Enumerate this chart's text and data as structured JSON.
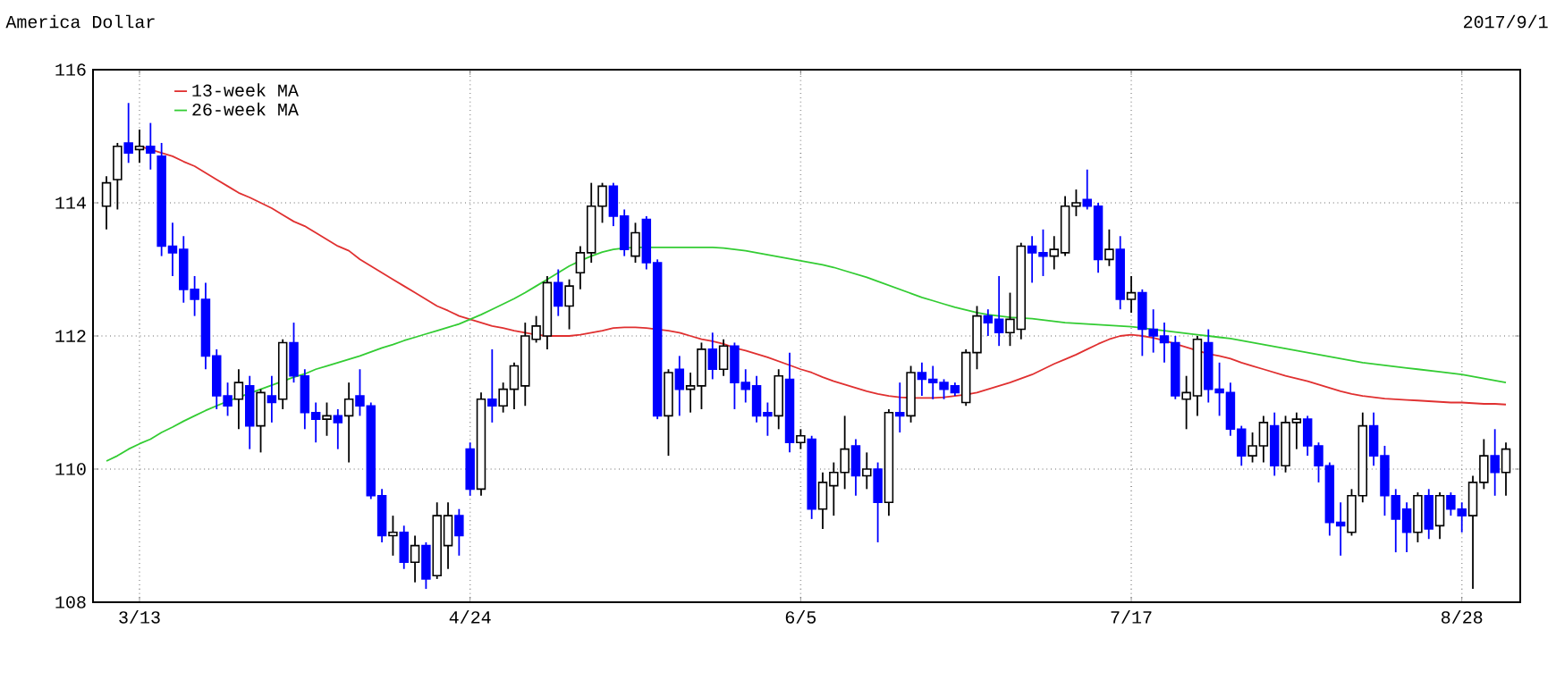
{
  "chart_data": {
    "type": "candlestick",
    "title": "America Dollar",
    "subtitle": "2017/9/1",
    "categories": [
      null,
      null,
      null,
      "3/13",
      null,
      null,
      null,
      null,
      null,
      null,
      null,
      null,
      null,
      null,
      null,
      null,
      null,
      null,
      null,
      null,
      null,
      null,
      null,
      null,
      null,
      null,
      null,
      null,
      null,
      null,
      null,
      null,
      null,
      "4/24",
      null,
      null,
      null,
      null,
      null,
      null,
      null,
      null,
      null,
      null,
      null,
      null,
      null,
      null,
      null,
      null,
      null,
      null,
      null,
      null,
      null,
      null,
      null,
      null,
      null,
      null,
      null,
      null,
      null,
      "6/5",
      null,
      null,
      null,
      null,
      null,
      null,
      null,
      null,
      null,
      null,
      null,
      null,
      null,
      null,
      null,
      null,
      null,
      null,
      null,
      null,
      null,
      null,
      null,
      null,
      null,
      null,
      null,
      null,
      null,
      "7/17",
      null,
      null,
      null,
      null,
      null,
      null,
      null,
      null,
      null,
      null,
      null,
      null,
      null,
      null,
      null,
      null,
      null,
      null,
      null,
      null,
      null,
      null,
      null,
      null,
      null,
      null,
      null,
      null,
      null,
      "8/28",
      null,
      null,
      null,
      null
    ],
    "ohlc": [
      [
        113.95,
        114.4,
        113.6,
        114.3
      ],
      [
        114.35,
        114.9,
        113.9,
        114.85
      ],
      [
        114.9,
        115.5,
        114.6,
        114.75
      ],
      [
        114.8,
        115.1,
        114.6,
        114.85
      ],
      [
        114.85,
        115.2,
        114.5,
        114.75
      ],
      [
        114.7,
        114.9,
        113.2,
        113.35
      ],
      [
        113.35,
        113.7,
        112.9,
        113.25
      ],
      [
        113.3,
        113.5,
        112.5,
        112.7
      ],
      [
        112.7,
        112.9,
        112.3,
        112.55
      ],
      [
        112.55,
        112.8,
        111.5,
        111.7
      ],
      [
        111.7,
        111.8,
        110.9,
        111.1
      ],
      [
        111.1,
        111.3,
        110.8,
        110.95
      ],
      [
        111.05,
        111.5,
        110.6,
        111.3
      ],
      [
        111.25,
        111.4,
        110.3,
        110.65
      ],
      [
        110.65,
        111.2,
        110.25,
        111.15
      ],
      [
        111.1,
        111.4,
        110.7,
        111.0
      ],
      [
        111.05,
        111.95,
        110.9,
        111.9
      ],
      [
        111.9,
        112.2,
        111.3,
        111.4
      ],
      [
        111.4,
        111.5,
        110.6,
        110.85
      ],
      [
        110.85,
        111.0,
        110.4,
        110.75
      ],
      [
        110.75,
        111.0,
        110.5,
        110.8
      ],
      [
        110.8,
        110.9,
        110.3,
        110.7
      ],
      [
        110.8,
        111.3,
        110.1,
        111.05
      ],
      [
        111.1,
        111.5,
        110.8,
        110.95
      ],
      [
        110.95,
        111.0,
        109.55,
        109.6
      ],
      [
        109.6,
        109.7,
        108.9,
        109.0
      ],
      [
        109.0,
        109.3,
        108.7,
        109.05
      ],
      [
        109.05,
        109.15,
        108.5,
        108.6
      ],
      [
        108.6,
        109.0,
        108.3,
        108.85
      ],
      [
        108.85,
        108.9,
        108.2,
        108.35
      ],
      [
        108.4,
        109.5,
        108.35,
        109.3
      ],
      [
        108.85,
        109.5,
        108.5,
        109.3
      ],
      [
        109.3,
        109.4,
        108.7,
        109.0
      ],
      [
        110.3,
        110.4,
        109.6,
        109.7
      ],
      [
        109.7,
        111.15,
        109.6,
        111.05
      ],
      [
        111.05,
        111.8,
        110.7,
        110.95
      ],
      [
        110.95,
        111.3,
        110.85,
        111.2
      ],
      [
        111.2,
        111.6,
        110.9,
        111.55
      ],
      [
        111.25,
        112.2,
        110.95,
        112.0
      ],
      [
        111.95,
        112.3,
        111.9,
        112.15
      ],
      [
        112.0,
        112.9,
        111.8,
        112.8
      ],
      [
        112.8,
        113.0,
        112.3,
        112.45
      ],
      [
        112.45,
        112.85,
        112.1,
        112.75
      ],
      [
        112.95,
        113.35,
        112.7,
        113.25
      ],
      [
        113.25,
        114.3,
        113.1,
        113.95
      ],
      [
        113.95,
        114.3,
        113.7,
        114.25
      ],
      [
        114.25,
        114.3,
        113.65,
        113.8
      ],
      [
        113.8,
        113.9,
        113.2,
        113.3
      ],
      [
        113.2,
        113.7,
        113.1,
        113.55
      ],
      [
        113.75,
        113.8,
        113.0,
        113.1
      ],
      [
        113.1,
        113.15,
        110.75,
        110.8
      ],
      [
        110.8,
        111.5,
        110.2,
        111.45
      ],
      [
        111.5,
        111.7,
        110.8,
        111.2
      ],
      [
        111.2,
        111.45,
        110.85,
        111.25
      ],
      [
        111.25,
        111.9,
        110.9,
        111.8
      ],
      [
        111.8,
        112.05,
        111.35,
        111.5
      ],
      [
        111.5,
        111.95,
        111.4,
        111.85
      ],
      [
        111.85,
        111.9,
        110.9,
        111.3
      ],
      [
        111.3,
        111.5,
        111.0,
        111.2
      ],
      [
        111.25,
        111.4,
        110.7,
        110.8
      ],
      [
        110.85,
        111.0,
        110.5,
        110.8
      ],
      [
        110.8,
        111.5,
        110.6,
        111.4
      ],
      [
        111.35,
        111.75,
        110.25,
        110.4
      ],
      [
        110.4,
        110.6,
        110.3,
        110.5
      ],
      [
        110.45,
        110.5,
        109.25,
        109.4
      ],
      [
        109.4,
        109.95,
        109.1,
        109.8
      ],
      [
        109.75,
        110.1,
        109.3,
        109.95
      ],
      [
        109.95,
        110.8,
        109.7,
        110.3
      ],
      [
        110.35,
        110.45,
        109.6,
        109.9
      ],
      [
        109.9,
        110.25,
        109.7,
        110.0
      ],
      [
        110.0,
        110.1,
        108.9,
        109.5
      ],
      [
        109.5,
        110.9,
        109.3,
        110.85
      ],
      [
        110.85,
        111.3,
        110.55,
        110.8
      ],
      [
        110.8,
        111.55,
        110.7,
        111.45
      ],
      [
        111.45,
        111.6,
        111.1,
        111.35
      ],
      [
        111.35,
        111.55,
        111.05,
        111.3
      ],
      [
        111.3,
        111.35,
        111.05,
        111.2
      ],
      [
        111.25,
        111.3,
        111.1,
        111.15
      ],
      [
        111.0,
        111.8,
        110.95,
        111.75
      ],
      [
        111.75,
        112.45,
        111.5,
        112.3
      ],
      [
        112.3,
        112.4,
        112.0,
        112.2
      ],
      [
        112.25,
        112.9,
        111.85,
        112.05
      ],
      [
        112.05,
        112.65,
        111.85,
        112.25
      ],
      [
        112.1,
        113.4,
        111.95,
        113.35
      ],
      [
        113.35,
        113.5,
        112.8,
        113.25
      ],
      [
        113.25,
        113.6,
        112.9,
        113.2
      ],
      [
        113.2,
        113.5,
        113.0,
        113.3
      ],
      [
        113.25,
        114.1,
        113.2,
        113.95
      ],
      [
        113.95,
        114.2,
        113.8,
        114.0
      ],
      [
        114.05,
        114.5,
        113.9,
        113.95
      ],
      [
        113.95,
        114.0,
        112.95,
        113.15
      ],
      [
        113.15,
        113.6,
        113.05,
        113.3
      ],
      [
        113.3,
        113.5,
        112.4,
        112.55
      ],
      [
        112.55,
        112.9,
        112.35,
        112.65
      ],
      [
        112.65,
        112.7,
        111.7,
        112.1
      ],
      [
        112.1,
        112.4,
        111.75,
        112.0
      ],
      [
        112.0,
        112.2,
        111.6,
        111.9
      ],
      [
        111.9,
        112.0,
        111.05,
        111.1
      ],
      [
        111.05,
        111.4,
        110.6,
        111.15
      ],
      [
        111.1,
        112.0,
        110.8,
        111.95
      ],
      [
        111.9,
        112.1,
        111.0,
        111.2
      ],
      [
        111.2,
        111.6,
        110.8,
        111.15
      ],
      [
        111.15,
        111.3,
        110.5,
        110.6
      ],
      [
        110.6,
        110.65,
        110.05,
        110.2
      ],
      [
        110.2,
        110.55,
        110.1,
        110.35
      ],
      [
        110.35,
        110.8,
        110.1,
        110.7
      ],
      [
        110.65,
        110.85,
        109.9,
        110.05
      ],
      [
        110.05,
        110.8,
        109.95,
        110.7
      ],
      [
        110.7,
        110.85,
        110.3,
        110.75
      ],
      [
        110.75,
        110.8,
        110.2,
        110.35
      ],
      [
        110.35,
        110.4,
        109.8,
        110.05
      ],
      [
        110.05,
        110.1,
        109.0,
        109.2
      ],
      [
        109.2,
        109.5,
        108.7,
        109.15
      ],
      [
        109.05,
        109.7,
        109.0,
        109.6
      ],
      [
        109.6,
        110.85,
        109.5,
        110.65
      ],
      [
        110.65,
        110.85,
        110.05,
        110.2
      ],
      [
        110.2,
        110.35,
        109.3,
        109.6
      ],
      [
        109.6,
        109.7,
        108.75,
        109.25
      ],
      [
        109.4,
        109.5,
        108.75,
        109.05
      ],
      [
        109.05,
        109.65,
        108.9,
        109.6
      ],
      [
        109.6,
        109.7,
        108.95,
        109.1
      ],
      [
        109.15,
        109.65,
        108.95,
        109.6
      ],
      [
        109.6,
        109.65,
        109.3,
        109.4
      ],
      [
        109.4,
        109.5,
        109.05,
        109.3
      ],
      [
        109.3,
        109.9,
        108.2,
        109.8
      ],
      [
        109.8,
        110.45,
        109.7,
        110.2
      ],
      [
        110.2,
        110.6,
        109.6,
        109.95
      ],
      [
        109.95,
        110.4,
        109.6,
        110.3
      ]
    ],
    "colors": [
      "#ffffff",
      "#ffffff",
      "#0000ff",
      "#ffffff",
      "#0000ff",
      "#0000ff",
      "#0000ff",
      "#0000ff",
      "#0000ff",
      "#0000ff",
      "#0000ff",
      "#0000ff",
      "#ffffff",
      "#0000ff",
      "#ffffff",
      "#0000ff",
      "#ffffff",
      "#0000ff",
      "#0000ff",
      "#0000ff",
      "#ffffff",
      "#0000ff",
      "#ffffff",
      "#0000ff",
      "#0000ff",
      "#0000ff",
      "#ffffff",
      "#0000ff",
      "#ffffff",
      "#0000ff",
      "#ffffff",
      "#ffffff",
      "#0000ff",
      "#0000ff",
      "#ffffff",
      "#0000ff",
      "#ffffff",
      "#ffffff",
      "#ffffff",
      "#ffffff",
      "#ffffff",
      "#0000ff",
      "#ffffff",
      "#ffffff",
      "#ffffff",
      "#ffffff",
      "#0000ff",
      "#0000ff",
      "#ffffff",
      "#0000ff",
      "#0000ff",
      "#ffffff",
      "#0000ff",
      "#ffffff",
      "#ffffff",
      "#0000ff",
      "#ffffff",
      "#0000ff",
      "#0000ff",
      "#0000ff",
      "#0000ff",
      "#ffffff",
      "#0000ff",
      "#ffffff",
      "#0000ff",
      "#ffffff",
      "#ffffff",
      "#ffffff",
      "#0000ff",
      "#ffffff",
      "#0000ff",
      "#ffffff",
      "#0000ff",
      "#ffffff",
      "#0000ff",
      "#0000ff",
      "#0000ff",
      "#0000ff",
      "#ffffff",
      "#ffffff",
      "#0000ff",
      "#0000ff",
      "#ffffff",
      "#ffffff",
      "#0000ff",
      "#0000ff",
      "#ffffff",
      "#ffffff",
      "#ffffff",
      "#0000ff",
      "#0000ff",
      "#ffffff",
      "#0000ff",
      "#ffffff",
      "#0000ff",
      "#0000ff",
      "#0000ff",
      "#0000ff",
      "#ffffff",
      "#ffffff",
      "#0000ff",
      "#0000ff",
      "#0000ff",
      "#0000ff",
      "#ffffff",
      "#ffffff",
      "#0000ff",
      "#ffffff",
      "#ffffff",
      "#0000ff",
      "#0000ff",
      "#0000ff",
      "#0000ff",
      "#ffffff",
      "#ffffff",
      "#0000ff",
      "#0000ff",
      "#0000ff",
      "#0000ff",
      "#ffffff",
      "#0000ff",
      "#ffffff",
      "#0000ff",
      "#0000ff",
      "#ffffff",
      "#ffffff",
      "#0000ff",
      "#ffffff"
    ],
    "series": [
      {
        "type": "line",
        "name": "13-week MA",
        "color": "#e03030",
        "values": [
          null,
          null,
          null,
          114.85,
          114.8,
          114.75,
          114.7,
          114.62,
          114.55,
          114.45,
          114.35,
          114.25,
          114.15,
          114.08,
          114.0,
          113.92,
          113.82,
          113.72,
          113.65,
          113.55,
          113.45,
          113.35,
          113.28,
          113.15,
          113.05,
          112.95,
          112.85,
          112.75,
          112.65,
          112.55,
          112.45,
          112.38,
          112.3,
          112.25,
          112.2,
          112.15,
          112.12,
          112.08,
          112.05,
          112.02,
          112.0,
          112.0,
          112.0,
          112.02,
          112.05,
          112.08,
          112.12,
          112.13,
          112.13,
          112.12,
          112.1,
          112.08,
          112.05,
          112.0,
          111.95,
          111.92,
          111.88,
          111.82,
          111.78,
          111.73,
          111.68,
          111.62,
          111.56,
          111.5,
          111.45,
          111.38,
          111.32,
          111.27,
          111.22,
          111.17,
          111.13,
          111.1,
          111.08,
          111.07,
          111.07,
          111.07,
          111.08,
          111.1,
          111.12,
          111.15,
          111.2,
          111.25,
          111.3,
          111.36,
          111.42,
          111.5,
          111.58,
          111.65,
          111.72,
          111.8,
          111.88,
          111.95,
          112.0,
          112.02,
          112.0,
          111.97,
          111.93,
          111.88,
          111.83,
          111.78,
          111.73,
          111.7,
          111.66,
          111.6,
          111.55,
          111.5,
          111.45,
          111.4,
          111.36,
          111.32,
          111.27,
          111.22,
          111.17,
          111.13,
          111.1,
          111.08,
          111.06,
          111.05,
          111.04,
          111.03,
          111.02,
          111.01,
          111.0,
          111.0,
          110.99,
          110.98,
          110.98,
          110.97
        ]
      },
      {
        "type": "line",
        "name": "26-week MA",
        "color": "#33cc33",
        "values": [
          110.12,
          110.2,
          110.3,
          110.38,
          110.45,
          110.55,
          110.63,
          110.72,
          110.8,
          110.88,
          110.95,
          111.02,
          111.08,
          111.14,
          111.2,
          111.26,
          111.32,
          111.38,
          111.43,
          111.5,
          111.55,
          111.6,
          111.65,
          111.7,
          111.76,
          111.82,
          111.87,
          111.93,
          111.98,
          112.03,
          112.08,
          112.13,
          112.18,
          112.25,
          112.32,
          112.4,
          112.48,
          112.56,
          112.65,
          112.75,
          112.85,
          112.95,
          113.05,
          113.13,
          113.2,
          113.26,
          113.3,
          113.32,
          113.33,
          113.33,
          113.33,
          113.33,
          113.33,
          113.33,
          113.33,
          113.33,
          113.32,
          113.3,
          113.28,
          113.25,
          113.22,
          113.19,
          113.16,
          113.13,
          113.1,
          113.07,
          113.03,
          112.98,
          112.93,
          112.88,
          112.82,
          112.76,
          112.7,
          112.64,
          112.58,
          112.53,
          112.48,
          112.43,
          112.39,
          112.35,
          112.32,
          112.3,
          112.28,
          112.27,
          112.26,
          112.24,
          112.22,
          112.2,
          112.19,
          112.18,
          112.17,
          112.16,
          112.15,
          112.14,
          112.12,
          112.1,
          112.08,
          112.06,
          112.04,
          112.02,
          112.0,
          111.98,
          111.96,
          111.93,
          111.9,
          111.87,
          111.84,
          111.81,
          111.78,
          111.75,
          111.72,
          111.69,
          111.66,
          111.63,
          111.6,
          111.58,
          111.56,
          111.54,
          111.52,
          111.5,
          111.48,
          111.46,
          111.44,
          111.42,
          111.39,
          111.36,
          111.33,
          111.3
        ]
      }
    ],
    "ylim": [
      108,
      116
    ],
    "yticks": [
      108,
      110,
      112,
      114,
      116
    ],
    "grid": true,
    "legend": "top left"
  }
}
